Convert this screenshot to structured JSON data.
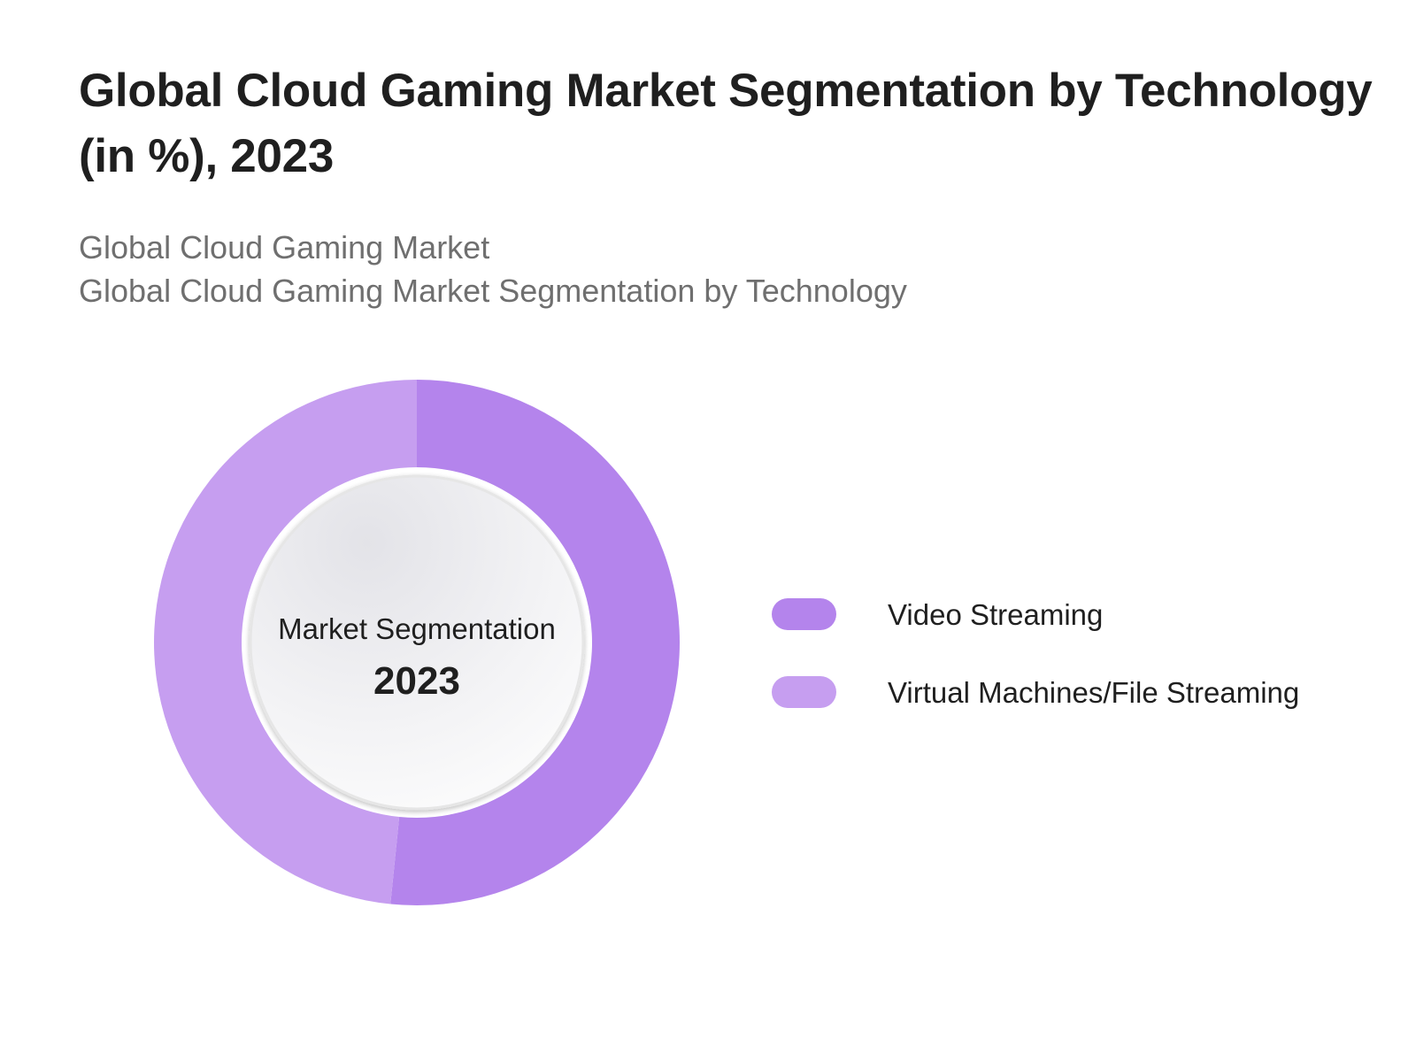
{
  "title": "Global Cloud Gaming Market Segmentation by Technology (in %), 2023",
  "subtitle_lines": [
    "Global Cloud Gaming Market",
    "Global Cloud Gaming Market Segmentation by Technology"
  ],
  "chart_data": {
    "type": "pie",
    "variant": "donut",
    "title": "Global Cloud Gaming Market Segmentation by Technology (in %), 2023",
    "center_label": "Market Segmentation",
    "center_value": "2023",
    "legend_position": "right",
    "series": [
      {
        "name": "Video Streaming",
        "value": 51.6,
        "color": "#b484ec"
      },
      {
        "name": "Virtual Machines/File Streaming",
        "value": 48.4,
        "color": "#c69ef0"
      }
    ]
  }
}
